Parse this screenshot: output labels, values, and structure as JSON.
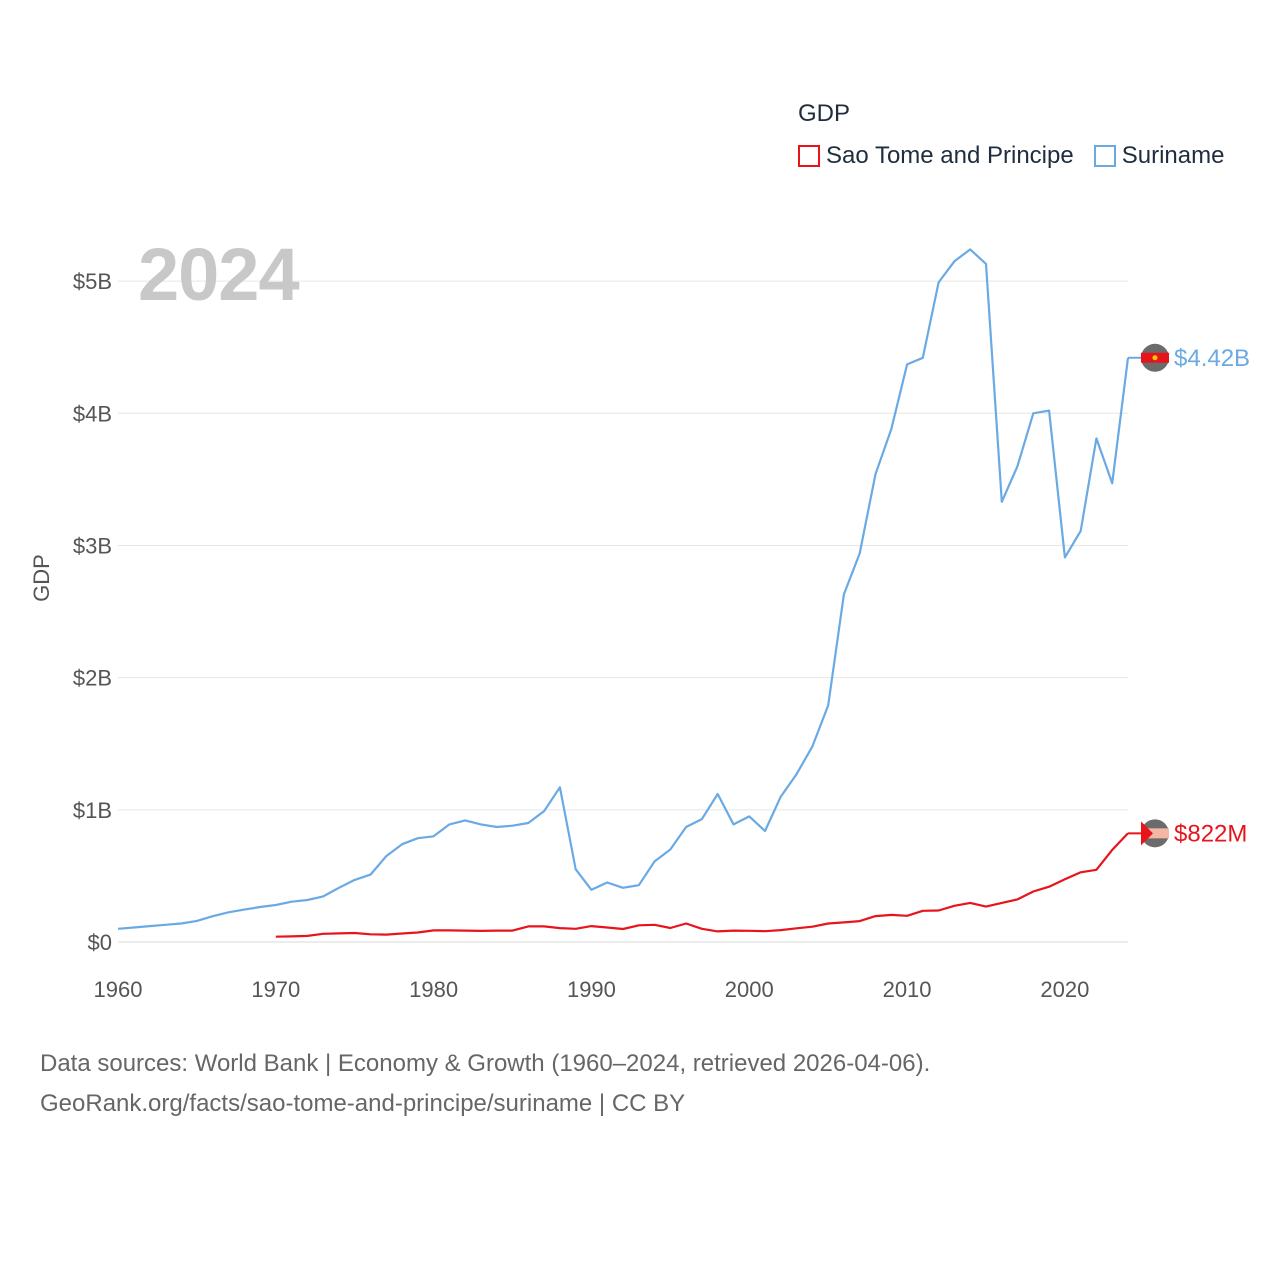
{
  "legend": {
    "title": "GDP",
    "items": [
      {
        "name": "Sao Tome and Principe",
        "color": "#e8141c"
      },
      {
        "name": "Suriname",
        "color": "#6aaae4"
      }
    ]
  },
  "year_display": "2024",
  "footer": {
    "line1": "Data sources: World Bank | Economy & Growth (1960–2024, retrieved 2026-04-06).",
    "line2": "GeoRank.org/facts/sao-tome-and-principe/suriname | CC BY"
  },
  "chart_data": {
    "type": "line",
    "title": "GDP",
    "xlabel": "",
    "ylabel": "GDP",
    "xlim": [
      1960,
      2024
    ],
    "ylim": [
      0,
      5500000000
    ],
    "x_ticks": [
      {
        "value": 1960,
        "label": "1960"
      },
      {
        "value": 1970,
        "label": "1970"
      },
      {
        "value": 1980,
        "label": "1980"
      },
      {
        "value": 1990,
        "label": "1990"
      },
      {
        "value": 2000,
        "label": "2000"
      },
      {
        "value": 2010,
        "label": "2010"
      },
      {
        "value": 2020,
        "label": "2020"
      }
    ],
    "y_ticks": [
      {
        "value": 0,
        "label": "$0"
      },
      {
        "value": 1000000000,
        "label": "$1B"
      },
      {
        "value": 2000000000,
        "label": "$2B"
      },
      {
        "value": 3000000000,
        "label": "$3B"
      },
      {
        "value": 4000000000,
        "label": "$4B"
      },
      {
        "value": 5000000000,
        "label": "$5B"
      }
    ],
    "grid": true,
    "series": [
      {
        "name": "Suriname",
        "color": "#6aaae4",
        "end_label": "$4.42B",
        "x": [
          1960,
          1961,
          1962,
          1963,
          1964,
          1965,
          1966,
          1967,
          1968,
          1969,
          1970,
          1971,
          1972,
          1973,
          1974,
          1975,
          1976,
          1977,
          1978,
          1979,
          1980,
          1981,
          1982,
          1983,
          1984,
          1985,
          1986,
          1987,
          1988,
          1989,
          1990,
          1991,
          1992,
          1993,
          1994,
          1995,
          1996,
          1997,
          1998,
          1999,
          2000,
          2001,
          2002,
          2003,
          2004,
          2005,
          2006,
          2007,
          2008,
          2009,
          2010,
          2011,
          2012,
          2013,
          2014,
          2015,
          2016,
          2017,
          2018,
          2019,
          2020,
          2021,
          2022,
          2023,
          2024
        ],
        "values": [
          100000000,
          110000000,
          120000000,
          130000000,
          140000000,
          160000000,
          195000000,
          225000000,
          245000000,
          265000000,
          280000000,
          305000000,
          318000000,
          345000000,
          410000000,
          470000000,
          510000000,
          650000000,
          740000000,
          785000000,
          800000000,
          890000000,
          920000000,
          890000000,
          870000000,
          880000000,
          900000000,
          990000000,
          1170000000,
          550000000,
          395000000,
          450000000,
          410000000,
          430000000,
          610000000,
          700000000,
          870000000,
          930000000,
          1120000000,
          890000000,
          950000000,
          840000000,
          1100000000,
          1270000000,
          1480000000,
          1790000000,
          2630000000,
          2940000000,
          3540000000,
          3880000000,
          4370000000,
          4420000000,
          4990000000,
          5150000000,
          5240000000,
          5130000000,
          3330000000,
          3600000000,
          4000000000,
          4020000000,
          2910000000,
          3110000000,
          3810000000,
          3470000000,
          4420000000
        ]
      },
      {
        "name": "Sao Tome and Principe",
        "color": "#e8141c",
        "end_label": "$822M",
        "x": [
          1970,
          1971,
          1972,
          1973,
          1974,
          1975,
          1976,
          1977,
          1978,
          1979,
          1980,
          1981,
          1982,
          1983,
          1984,
          1985,
          1986,
          1987,
          1988,
          1989,
          1990,
          1991,
          1992,
          1993,
          1994,
          1995,
          1996,
          1997,
          1998,
          1999,
          2000,
          2001,
          2002,
          2003,
          2004,
          2005,
          2006,
          2007,
          2008,
          2009,
          2010,
          2011,
          2012,
          2013,
          2014,
          2015,
          2016,
          2017,
          2018,
          2019,
          2020,
          2021,
          2022,
          2023,
          2024
        ],
        "values": [
          40000000,
          42000000,
          46000000,
          62000000,
          65000000,
          68000000,
          58000000,
          56000000,
          64000000,
          72000000,
          88000000,
          88000000,
          86000000,
          84000000,
          86000000,
          86000000,
          118000000,
          118000000,
          105000000,
          100000000,
          120000000,
          110000000,
          98000000,
          126000000,
          130000000,
          106000000,
          140000000,
          100000000,
          80000000,
          86000000,
          85000000,
          82000000,
          90000000,
          104000000,
          116000000,
          140000000,
          148000000,
          158000000,
          196000000,
          205000000,
          198000000,
          236000000,
          238000000,
          274000000,
          296000000,
          268000000,
          296000000,
          322000000,
          382000000,
          418000000,
          474000000,
          527000000,
          546000000,
          697000000,
          822000000
        ]
      }
    ]
  }
}
